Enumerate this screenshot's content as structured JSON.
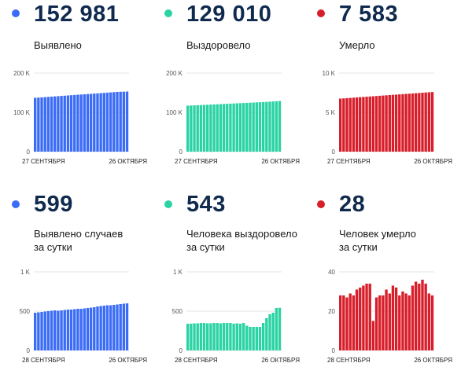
{
  "panels": [
    {
      "value": "152 981",
      "label": [
        "Выявлено"
      ],
      "color": "#3b6cf6"
    },
    {
      "value": "129 010",
      "label": [
        "Выздоровело"
      ],
      "color": "#2ad3a3"
    },
    {
      "value": "7 583",
      "label": [
        "Умерло"
      ],
      "color": "#d81e2a"
    },
    {
      "value": "599",
      "label": [
        "Выявлено случаев",
        "за сутки"
      ],
      "color": "#3b6cf6"
    },
    {
      "value": "543",
      "label": [
        "Человека выздоровело",
        "за сутки"
      ],
      "color": "#2ad3a3"
    },
    {
      "value": "28",
      "label": [
        "Человек умерло",
        "за сутки"
      ],
      "color": "#d81e2a"
    }
  ],
  "chart_data": [
    {
      "type": "bar",
      "color": "#3b6cf6",
      "ylim": [
        0,
        200000
      ],
      "yticks": [
        {
          "v": 0,
          "t": "0"
        },
        {
          "v": 100000,
          "t": "100 K"
        },
        {
          "v": 200000,
          "t": "200 K"
        }
      ],
      "x_start_label": "27 СЕНТЯБРЯ",
      "x_end_label": "26 ОКТЯБРЯ",
      "values": [
        137000,
        137600,
        138200,
        138800,
        139400,
        140000,
        140600,
        141200,
        141800,
        142400,
        143000,
        143600,
        144200,
        144800,
        145400,
        146000,
        146600,
        147200,
        147800,
        148400,
        149000,
        149600,
        150200,
        150800,
        151400,
        152000,
        152400,
        152700,
        152981
      ]
    },
    {
      "type": "bar",
      "color": "#2ad3a3",
      "ylim": [
        0,
        200000
      ],
      "yticks": [
        {
          "v": 0,
          "t": "0"
        },
        {
          "v": 100000,
          "t": "100 K"
        },
        {
          "v": 200000,
          "t": "200 K"
        }
      ],
      "x_start_label": "27 СЕНТЯБРЯ",
      "x_end_label": "26 ОКТЯБРЯ",
      "values": [
        117000,
        117400,
        117800,
        118200,
        118600,
        119000,
        119400,
        119800,
        120200,
        120600,
        121000,
        121400,
        121800,
        122200,
        122600,
        123000,
        123400,
        123800,
        124200,
        124600,
        125000,
        125400,
        125800,
        126200,
        126600,
        127200,
        127800,
        128400,
        129010
      ]
    },
    {
      "type": "bar",
      "color": "#d81e2a",
      "ylim": [
        0,
        10000
      ],
      "yticks": [
        {
          "v": 0,
          "t": "0"
        },
        {
          "v": 5000,
          "t": "5 K"
        },
        {
          "v": 10000,
          "t": "10 K"
        }
      ],
      "x_start_label": "27 СЕНТЯБРЯ",
      "x_end_label": "26 ОКТЯБРЯ",
      "values": [
        6750,
        6780,
        6810,
        6840,
        6870,
        6900,
        6930,
        6960,
        6990,
        7020,
        7050,
        7080,
        7110,
        7140,
        7170,
        7200,
        7230,
        7260,
        7290,
        7320,
        7350,
        7380,
        7410,
        7440,
        7470,
        7500,
        7530,
        7555,
        7583
      ]
    },
    {
      "type": "bar",
      "color": "#3b6cf6",
      "ylim": [
        0,
        1000
      ],
      "yticks": [
        {
          "v": 0,
          "t": "0"
        },
        {
          "v": 500,
          "t": "500"
        },
        {
          "v": 1000,
          "t": "1 K"
        }
      ],
      "x_start_label": "28 СЕНТЯБРЯ",
      "x_end_label": "26 ОКТЯБРЯ",
      "values": [
        480,
        485,
        490,
        495,
        500,
        505,
        510,
        505,
        510,
        515,
        520,
        520,
        525,
        530,
        530,
        535,
        540,
        545,
        550,
        560,
        565,
        570,
        575,
        575,
        580,
        585,
        590,
        595,
        599
      ]
    },
    {
      "type": "bar",
      "color": "#2ad3a3",
      "ylim": [
        0,
        1000
      ],
      "yticks": [
        {
          "v": 0,
          "t": "0"
        },
        {
          "v": 500,
          "t": "500"
        },
        {
          "v": 1000,
          "t": "1 K"
        }
      ],
      "x_start_label": "28 СЕНТЯБРЯ",
      "x_end_label": "26 ОКТЯБРЯ",
      "values": [
        340,
        340,
        345,
        345,
        350,
        350,
        345,
        345,
        350,
        350,
        345,
        350,
        350,
        350,
        340,
        345,
        340,
        350,
        315,
        300,
        300,
        300,
        300,
        350,
        410,
        460,
        480,
        540,
        543
      ]
    },
    {
      "type": "bar",
      "color": "#d81e2a",
      "ylim": [
        0,
        40
      ],
      "yticks": [
        {
          "v": 0,
          "t": "0"
        },
        {
          "v": 20,
          "t": "20"
        },
        {
          "v": 40,
          "t": "40"
        }
      ],
      "x_start_label": "28 СЕНТЯБРЯ",
      "x_end_label": "26 ОКТЯБРЯ",
      "values": [
        28,
        28,
        27,
        29,
        28,
        31,
        32,
        33,
        34,
        34,
        15,
        27,
        28,
        28,
        31,
        29,
        33,
        32,
        28,
        30,
        29,
        28,
        33,
        35,
        34,
        36,
        34,
        29,
        28
      ]
    }
  ]
}
